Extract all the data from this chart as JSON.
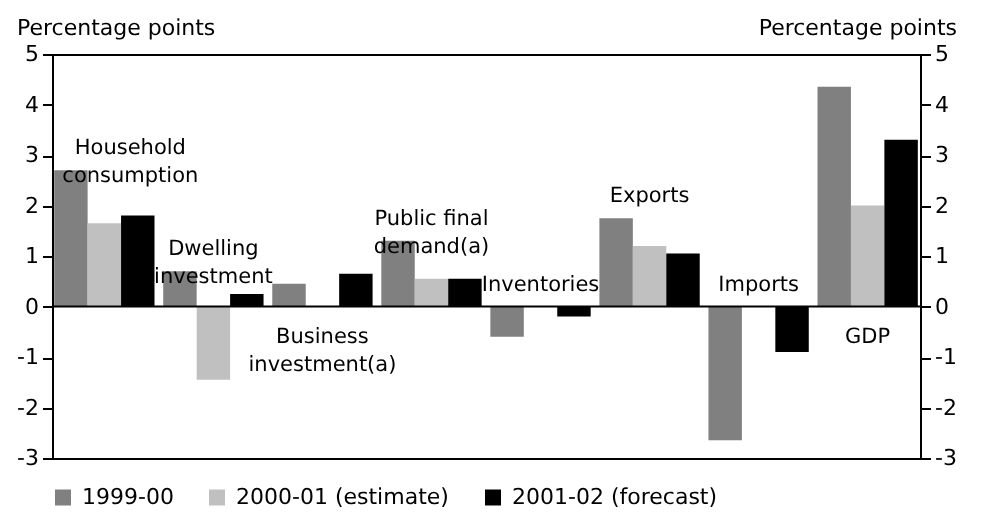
{
  "chart_data": {
    "type": "bar",
    "ylabel": "Percentage points",
    "y2label": "Percentage points",
    "categories": [
      "Household consumption",
      "Dwelling investment",
      "Business investment(a)",
      "Public final demand(a)",
      "Inventories",
      "Exports",
      "Imports",
      "GDP"
    ],
    "series": [
      {
        "name": "1999-00",
        "color": "#808080",
        "values": [
          2.7,
          0.7,
          0.45,
          1.3,
          -0.6,
          1.75,
          -2.65,
          4.35
        ]
      },
      {
        "name": "2000-01 (estimate)",
        "color": "#c0c0c0",
        "values": [
          1.65,
          -1.45,
          null,
          0.55,
          null,
          1.2,
          null,
          2.0
        ]
      },
      {
        "name": "2001-02 (forecast)",
        "color": "#000000",
        "values": [
          1.8,
          0.25,
          0.65,
          0.55,
          -0.2,
          1.05,
          -0.9,
          3.3
        ]
      }
    ],
    "ylim": [
      -3,
      5
    ],
    "yticks": [
      -3,
      -2,
      -1,
      0,
      1,
      2,
      3,
      4,
      5
    ],
    "y2lim": [
      -3,
      5
    ],
    "y2ticks": [
      -3,
      -2,
      -1,
      0,
      1,
      2,
      3,
      4,
      5
    ],
    "legend": "bottom"
  }
}
